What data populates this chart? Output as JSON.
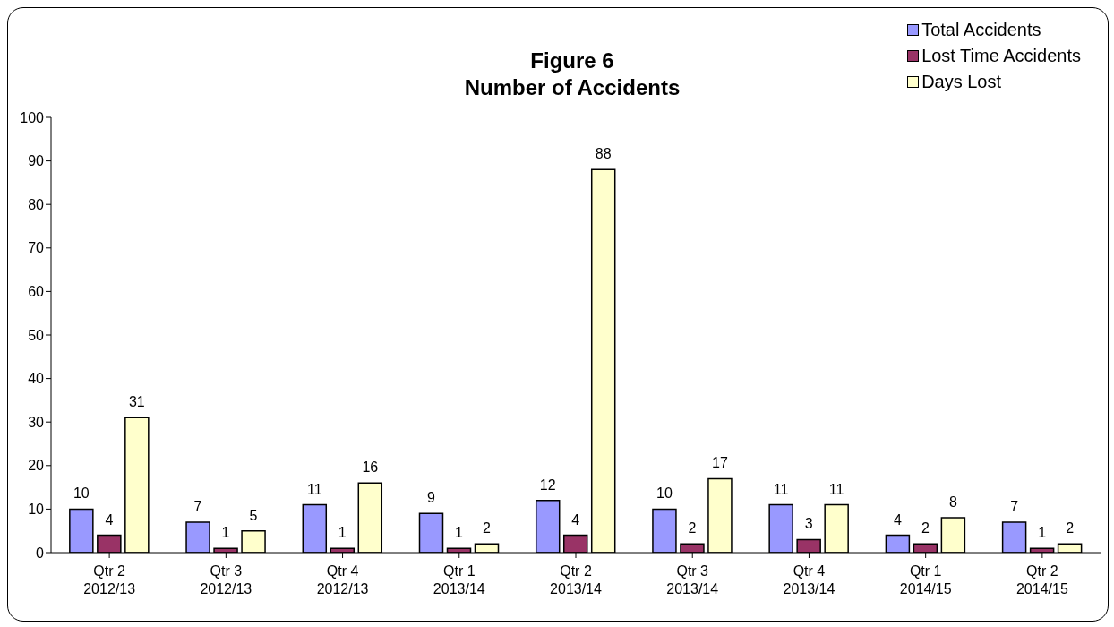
{
  "chart_data": {
    "type": "bar",
    "title": "Figure 6\nNumber of Accidents",
    "categories": [
      "Qtr 2\n2012/13",
      "Qtr 3\n2012/13",
      "Qtr 4\n2012/13",
      "Qtr 1\n2013/14",
      "Qtr 2\n2013/14",
      "Qtr 3\n2013/14",
      "Qtr 4\n2013/14",
      "Qtr 1\n2014/15",
      "Qtr 2\n2014/15"
    ],
    "series": [
      {
        "name": "Total Accidents",
        "color": "#9999ff",
        "values": [
          10,
          7,
          11,
          9,
          12,
          10,
          11,
          4,
          7
        ]
      },
      {
        "name": "Lost Time Accidents",
        "color": "#993366",
        "values": [
          4,
          1,
          1,
          1,
          4,
          2,
          3,
          2,
          1
        ]
      },
      {
        "name": "Days Lost",
        "color": "#ffffcc",
        "values": [
          31,
          5,
          16,
          2,
          88,
          17,
          11,
          8,
          2
        ]
      }
    ],
    "ylim": [
      0,
      100
    ],
    "yticks": [
      0,
      10,
      20,
      30,
      40,
      50,
      60,
      70,
      80,
      90,
      100
    ],
    "grid": false,
    "legend": "top right",
    "data_labels": true
  }
}
